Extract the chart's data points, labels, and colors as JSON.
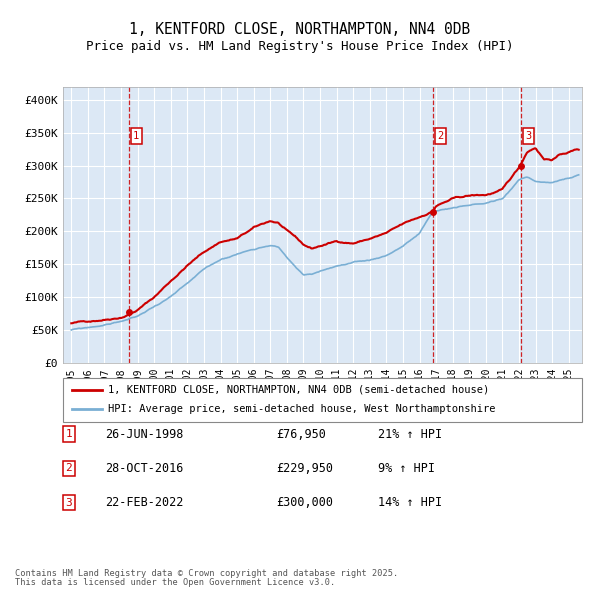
{
  "title": "1, KENTFORD CLOSE, NORTHAMPTON, NN4 0DB",
  "subtitle": "Price paid vs. HM Land Registry's House Price Index (HPI)",
  "legend_line1": "1, KENTFORD CLOSE, NORTHAMPTON, NN4 0DB (semi-detached house)",
  "legend_line2": "HPI: Average price, semi-detached house, West Northamptonshire",
  "footer_line1": "Contains HM Land Registry data © Crown copyright and database right 2025.",
  "footer_line2": "This data is licensed under the Open Government Licence v3.0.",
  "transactions": [
    {
      "num": 1,
      "date": "26-JUN-1998",
      "price": 76950,
      "pct": "21%",
      "dir": "↑"
    },
    {
      "num": 2,
      "date": "28-OCT-2016",
      "price": 229950,
      "pct": "9%",
      "dir": "↑"
    },
    {
      "num": 3,
      "date": "22-FEB-2022",
      "price": 300000,
      "pct": "14%",
      "dir": "↑"
    }
  ],
  "vline_dates": [
    1998.48,
    2016.82,
    2022.14
  ],
  "sale_points_x": [
    1998.48,
    2016.82,
    2022.14
  ],
  "sale_points_y": [
    76950,
    229950,
    300000
  ],
  "ylim": [
    0,
    420000
  ],
  "yticks": [
    0,
    50000,
    100000,
    150000,
    200000,
    250000,
    300000,
    350000,
    400000
  ],
  "ytick_labels": [
    "£0",
    "£50K",
    "£100K",
    "£150K",
    "£200K",
    "£250K",
    "£300K",
    "£350K",
    "£400K"
  ],
  "xlim": [
    1994.5,
    2025.8
  ],
  "xticks": [
    1995,
    1996,
    1997,
    1998,
    1999,
    2000,
    2001,
    2002,
    2003,
    2004,
    2005,
    2006,
    2007,
    2008,
    2009,
    2010,
    2011,
    2012,
    2013,
    2014,
    2015,
    2016,
    2017,
    2018,
    2019,
    2020,
    2021,
    2022,
    2023,
    2024,
    2025
  ],
  "bg_color": "#dce8f5",
  "grid_color": "#ffffff",
  "red_line_color": "#cc0000",
  "blue_line_color": "#7aafd4",
  "vline_color": "#cc0000",
  "box_color": "#cc0000",
  "marker_color": "#cc0000",
  "red_knots_x": [
    1995,
    1996,
    1997,
    1998,
    1998.5,
    1999,
    2000,
    2001,
    2002,
    2003,
    2004,
    2005,
    2006,
    2007,
    2007.5,
    2008,
    2008.5,
    2009,
    2009.5,
    2010,
    2011,
    2012,
    2013,
    2014,
    2015,
    2016,
    2016.82,
    2017,
    2018,
    2019,
    2020,
    2021,
    2022,
    2022.14,
    2022.5,
    2023,
    2023.5,
    2024,
    2024.5,
    2025.5
  ],
  "red_knots_y": [
    60000,
    63000,
    67000,
    72000,
    76950,
    84000,
    103000,
    128000,
    152000,
    172000,
    188000,
    193000,
    208000,
    218000,
    215000,
    202000,
    192000,
    180000,
    174000,
    178000,
    185000,
    183000,
    190000,
    198000,
    210000,
    220000,
    229950,
    238000,
    248000,
    252000,
    253000,
    260000,
    293000,
    300000,
    318000,
    325000,
    308000,
    308000,
    315000,
    323000
  ],
  "blue_knots_x": [
    1995,
    1996,
    1997,
    1998,
    1999,
    2000,
    2001,
    2002,
    2003,
    2004,
    2005,
    2006,
    2007,
    2007.5,
    2008,
    2008.5,
    2009,
    2009.5,
    2010,
    2011,
    2012,
    2013,
    2014,
    2015,
    2016,
    2016.82,
    2017,
    2018,
    2019,
    2020,
    2021,
    2022,
    2022.5,
    2023,
    2024,
    2025,
    2025.5
  ],
  "blue_knots_y": [
    50000,
    53000,
    57000,
    63000,
    70000,
    85000,
    100000,
    118000,
    138000,
    153000,
    162000,
    170000,
    178000,
    175000,
    160000,
    145000,
    132000,
    133000,
    138000,
    146000,
    149000,
    152000,
    160000,
    175000,
    193000,
    227000,
    227000,
    232000,
    235000,
    238000,
    245000,
    274000,
    278000,
    272000,
    270000,
    276000,
    280000
  ],
  "red_seed": 42,
  "blue_seed": 99,
  "noise_scale_red": 350,
  "noise_scale_blue": 250,
  "npoints": 500
}
